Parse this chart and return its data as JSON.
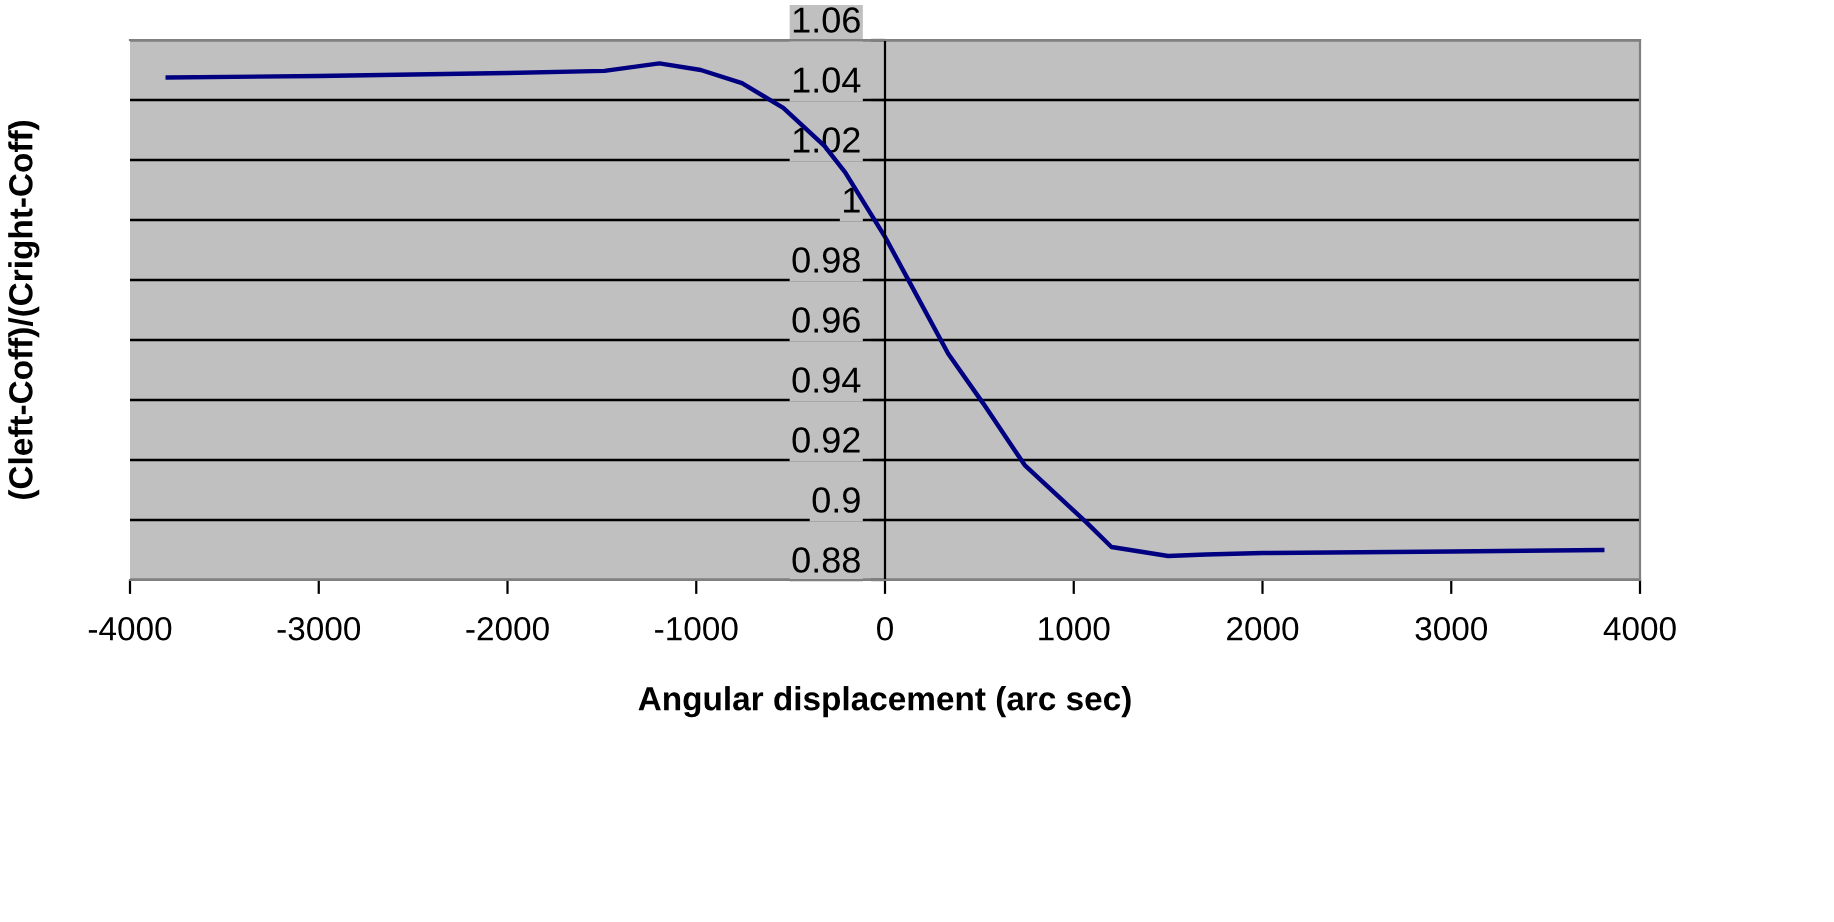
{
  "chart_data": {
    "type": "line",
    "xlabel": "Angular displacement (arc sec)",
    "ylabel": "(Cleft-Coff)/(Cright-Coff)",
    "xlim": [
      -4000,
      4000
    ],
    "xticks": [
      -4000,
      -3000,
      -2000,
      -1000,
      0,
      1000,
      2000,
      3000,
      4000
    ],
    "ylim": [
      0.88,
      1.06
    ],
    "yticks": [
      0.88,
      0.9,
      0.92,
      0.94,
      0.96,
      0.98,
      1,
      1.02,
      1.04,
      1.06
    ],
    "grid": "y",
    "legend": false,
    "marker": "none",
    "line_style": "solid",
    "series": [
      {
        "color": "#000080",
        "x": [
          -3800,
          -3000,
          -2000,
          -1486,
          -1195,
          -976,
          -758,
          -539,
          -321,
          -211,
          0,
          117,
          335,
          521,
          740,
          1067,
          1200,
          1500,
          1700,
          2000,
          3000,
          3800
        ],
        "values": [
          1.0475,
          1.048,
          1.049,
          1.0497,
          1.0522,
          1.05,
          1.0456,
          1.0374,
          1.0247,
          1.0159,
          0.9944,
          0.9808,
          0.9554,
          0.9388,
          0.9183,
          0.8992,
          0.891,
          0.888,
          0.8885,
          0.889,
          0.8895,
          0.89
        ]
      }
    ]
  }
}
